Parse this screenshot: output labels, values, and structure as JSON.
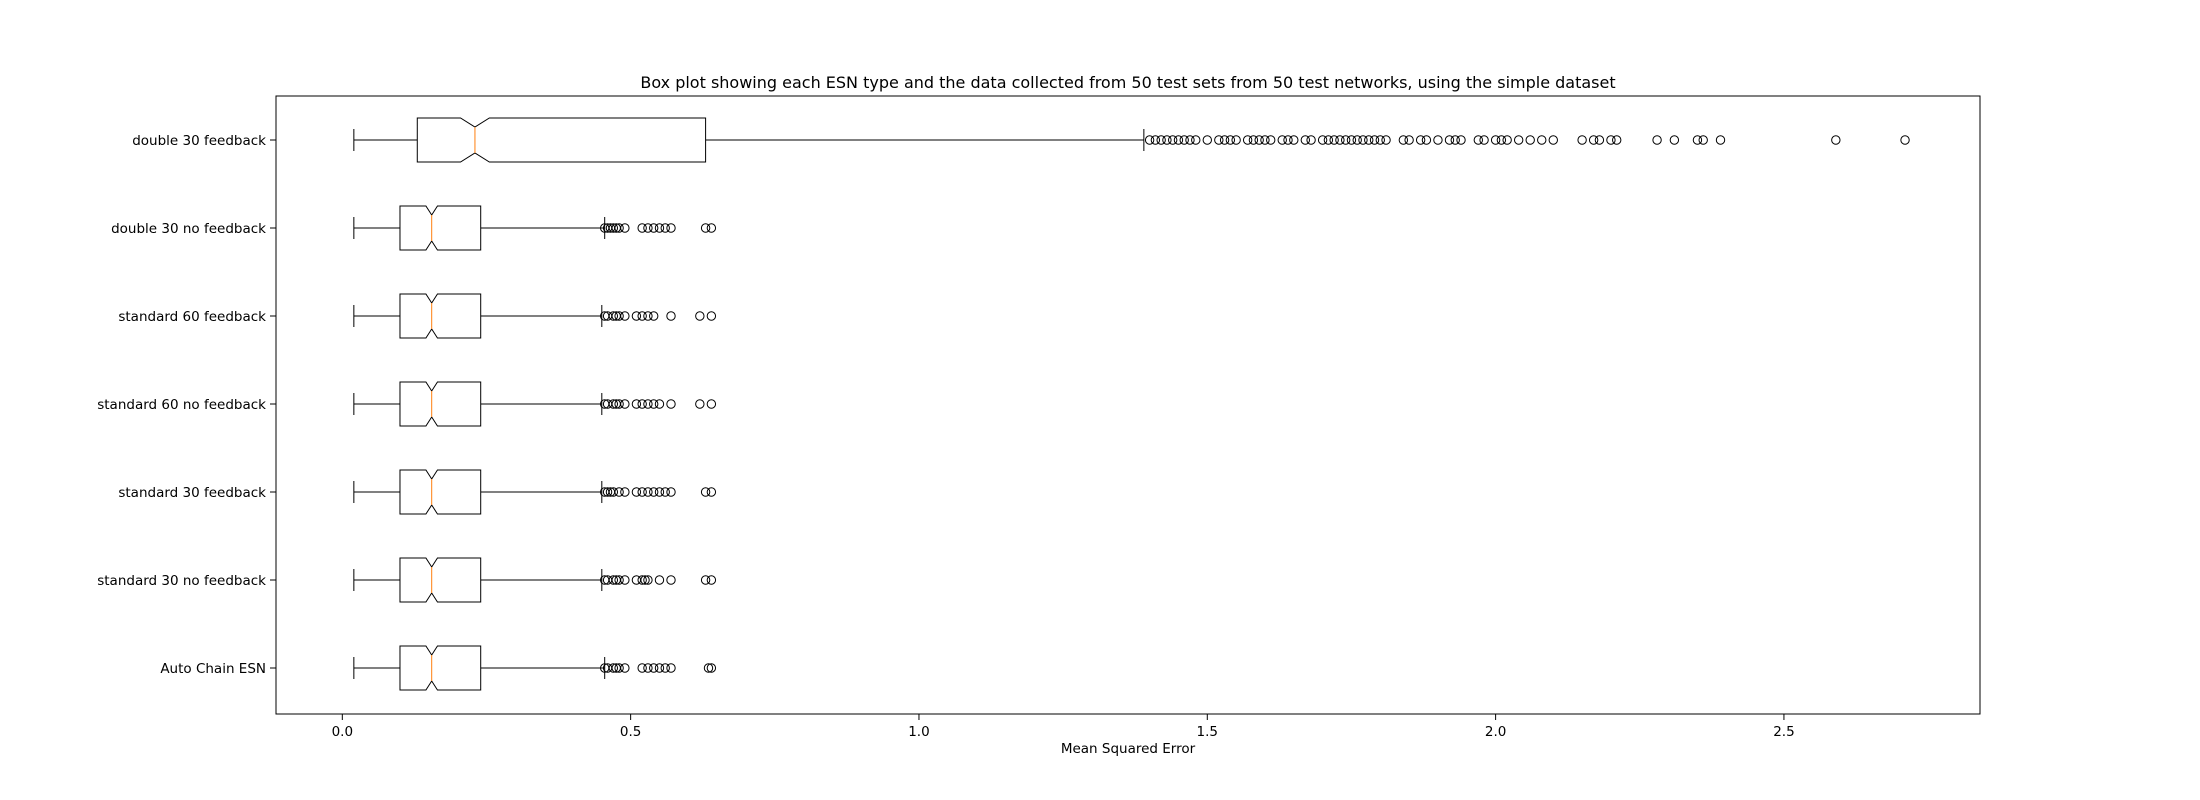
{
  "chart_data": {
    "type": "boxplot",
    "orientation": "horizontal",
    "notched": true,
    "title": "Box plot showing each ESN type and the data collected from 50 test sets from 50 test networks, using the simple dataset",
    "xlabel": "Mean Squared Error",
    "ylabel": "",
    "xlim": [
      -0.115,
      2.84
    ],
    "xticks": [
      0.0,
      0.5,
      1.0,
      1.5,
      2.0,
      2.5
    ],
    "xtick_labels": [
      "0.0",
      "0.5",
      "1.0",
      "1.5",
      "2.0",
      "2.5"
    ],
    "grid": false,
    "colors": {
      "box": "#000000",
      "median": "#ff7f0e",
      "background": "#ffffff"
    },
    "categories": [
      "double 30 feedback",
      "double 30 no feedback",
      "standard 60 feedback",
      "standard 60 no feedback",
      "standard 30 feedback",
      "standard 30 no feedback",
      "Auto Chain ESN"
    ],
    "series": [
      {
        "name": "double 30 feedback",
        "whisker_low": 0.02,
        "q1": 0.13,
        "median": 0.23,
        "q3": 0.63,
        "whisker_high": 1.39,
        "notch_low": 0.205,
        "notch_high": 0.255,
        "outliers": [
          1.4,
          1.41,
          1.42,
          1.43,
          1.44,
          1.45,
          1.46,
          1.47,
          1.48,
          1.5,
          1.52,
          1.53,
          1.54,
          1.55,
          1.57,
          1.58,
          1.59,
          1.6,
          1.61,
          1.63,
          1.64,
          1.65,
          1.67,
          1.68,
          1.7,
          1.71,
          1.72,
          1.73,
          1.74,
          1.75,
          1.76,
          1.77,
          1.78,
          1.79,
          1.8,
          1.81,
          1.84,
          1.85,
          1.87,
          1.88,
          1.9,
          1.92,
          1.93,
          1.94,
          1.97,
          1.98,
          2.0,
          2.01,
          2.02,
          2.04,
          2.06,
          2.08,
          2.1,
          2.15,
          2.17,
          2.18,
          2.2,
          2.21,
          2.28,
          2.31,
          2.35,
          2.36,
          2.39,
          2.59,
          2.71
        ]
      },
      {
        "name": "double 30 no feedback",
        "whisker_low": 0.02,
        "q1": 0.1,
        "median": 0.155,
        "q3": 0.24,
        "whisker_high": 0.455,
        "notch_low": 0.145,
        "notch_high": 0.165,
        "outliers": [
          0.455,
          0.46,
          0.465,
          0.47,
          0.475,
          0.48,
          0.49,
          0.52,
          0.53,
          0.54,
          0.55,
          0.56,
          0.57,
          0.63,
          0.64
        ]
      },
      {
        "name": "standard 60 feedback",
        "whisker_low": 0.02,
        "q1": 0.1,
        "median": 0.155,
        "q3": 0.24,
        "whisker_high": 0.45,
        "notch_low": 0.145,
        "notch_high": 0.165,
        "outliers": [
          0.455,
          0.46,
          0.47,
          0.475,
          0.48,
          0.49,
          0.51,
          0.52,
          0.53,
          0.54,
          0.57,
          0.62,
          0.64
        ]
      },
      {
        "name": "standard 60 no feedback",
        "whisker_low": 0.02,
        "q1": 0.1,
        "median": 0.155,
        "q3": 0.24,
        "whisker_high": 0.45,
        "notch_low": 0.145,
        "notch_high": 0.165,
        "outliers": [
          0.455,
          0.46,
          0.47,
          0.475,
          0.48,
          0.49,
          0.51,
          0.52,
          0.53,
          0.54,
          0.55,
          0.57,
          0.62,
          0.64
        ]
      },
      {
        "name": "standard 30 feedback",
        "whisker_low": 0.02,
        "q1": 0.1,
        "median": 0.155,
        "q3": 0.24,
        "whisker_high": 0.45,
        "notch_low": 0.145,
        "notch_high": 0.165,
        "outliers": [
          0.455,
          0.46,
          0.465,
          0.47,
          0.48,
          0.49,
          0.51,
          0.52,
          0.53,
          0.54,
          0.55,
          0.56,
          0.57,
          0.63,
          0.64
        ]
      },
      {
        "name": "standard 30 no feedback",
        "whisker_low": 0.02,
        "q1": 0.1,
        "median": 0.155,
        "q3": 0.24,
        "whisker_high": 0.45,
        "notch_low": 0.145,
        "notch_high": 0.165,
        "outliers": [
          0.455,
          0.46,
          0.47,
          0.475,
          0.48,
          0.49,
          0.51,
          0.52,
          0.525,
          0.53,
          0.55,
          0.57,
          0.63,
          0.64
        ]
      },
      {
        "name": "Auto Chain ESN",
        "whisker_low": 0.02,
        "q1": 0.1,
        "median": 0.155,
        "q3": 0.24,
        "whisker_high": 0.455,
        "notch_low": 0.145,
        "notch_high": 0.165,
        "outliers": [
          0.455,
          0.46,
          0.47,
          0.475,
          0.48,
          0.49,
          0.52,
          0.53,
          0.54,
          0.55,
          0.56,
          0.57,
          0.635,
          0.64
        ]
      }
    ]
  }
}
